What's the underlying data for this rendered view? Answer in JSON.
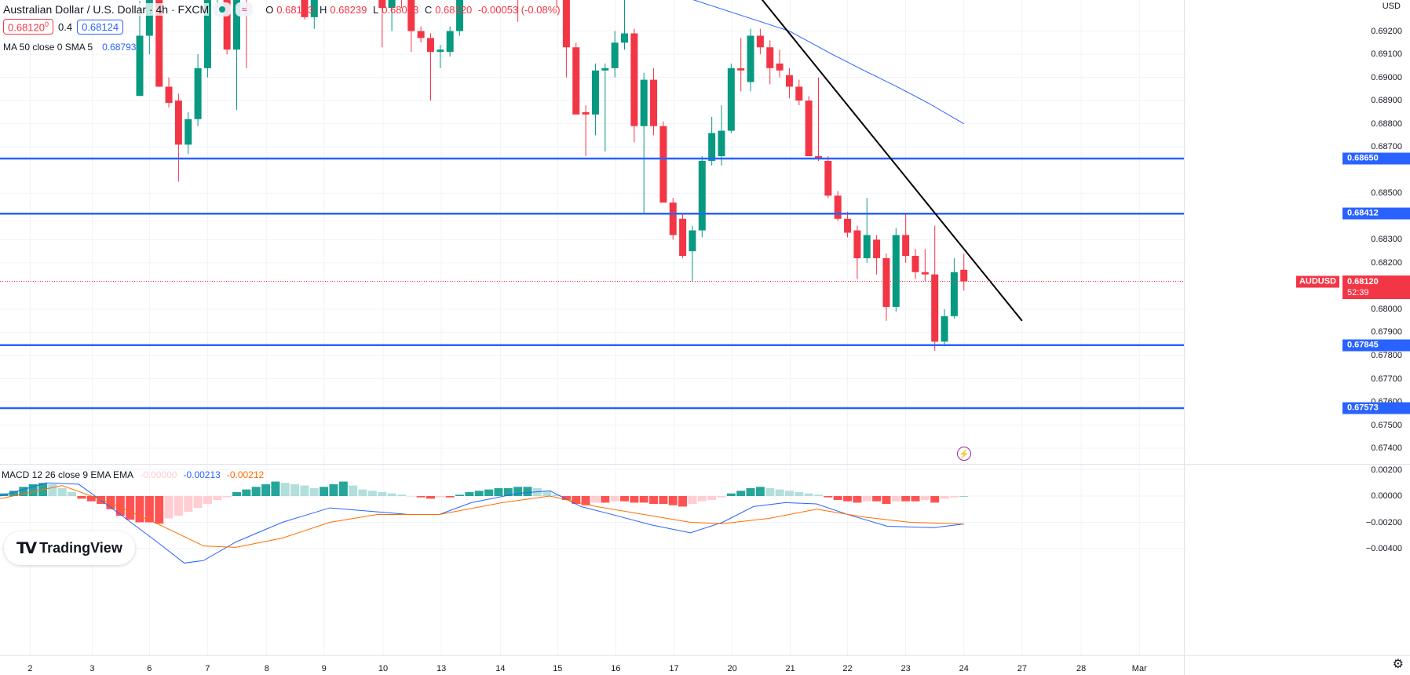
{
  "header": {
    "title": "Australian Dollar / U.S. Dollar · 4h · FXCM",
    "ohlc": {
      "o_label": "O",
      "o": "0.68173",
      "h_label": "H",
      "h": "0.68239",
      "l_label": "L",
      "l": "0.68083",
      "c_label": "C",
      "c": "0.68120",
      "change": "-0.00053 (-0.08%)"
    },
    "sell_price": "0.68120",
    "sell_sup": "0",
    "spread": "0.4",
    "buy_price": "0.68124",
    "buy_sup": "",
    "market_status_icon": "green-dot-icon",
    "wave_icon": "≈"
  },
  "indicator_ma": {
    "label": "MA 50 close 0 SMA 5",
    "value": "0.68793"
  },
  "indicator_macd": {
    "label": "MACD 12 26 close 9 EMA EMA",
    "hist": "-0.00000",
    "macd": "-0.00213",
    "signal": "-0.00212"
  },
  "currency": "USD",
  "symbol": "AUDUSD",
  "last_price": "0.68120",
  "countdown": "52:39",
  "logo_text": "TradingView",
  "colors": {
    "up": "#089981",
    "down": "#f23645",
    "level": "#2962ff",
    "ma": "#2962ff",
    "macd": "#2962ff",
    "signal": "#ff6d00",
    "trend": "#000000"
  },
  "time_axis": [
    {
      "label": "2",
      "index": -11.3
    },
    {
      "label": "3",
      "index": -4.9
    },
    {
      "label": "6",
      "index": 1
    },
    {
      "label": "7",
      "index": 7
    },
    {
      "label": "8",
      "index": 13.1
    },
    {
      "label": "9",
      "index": 19
    },
    {
      "label": "10",
      "index": 25.1
    },
    {
      "label": "13",
      "index": 31.1
    },
    {
      "label": "14",
      "index": 37.2
    },
    {
      "label": "15",
      "index": 43.1
    },
    {
      "label": "16",
      "index": 49.1
    },
    {
      "label": "17",
      "index": 55.1
    },
    {
      "label": "20",
      "index": 61.1
    },
    {
      "label": "21",
      "index": 67.1
    },
    {
      "label": "22",
      "index": 73
    },
    {
      "label": "23",
      "index": 79
    },
    {
      "label": "24",
      "index": 85
    },
    {
      "label": "27",
      "index": 91
    },
    {
      "label": "28",
      "index": 97.1
    },
    {
      "label": "Mar",
      "index": 103.1
    }
  ],
  "price_axis": [
    "0.69200",
    "0.69100",
    "0.69000",
    "0.68900",
    "0.68800",
    "0.68700",
    "0.68500",
    "0.68300",
    "0.68200",
    "0.68000",
    "0.67900",
    "0.67800",
    "0.67700",
    "0.67600",
    "0.67500",
    "0.67400"
  ],
  "macd_axis": [
    "0.00200",
    "0.00000",
    "−0.00200",
    "−0.00400"
  ],
  "levels": [
    "0.68650",
    "0.68412",
    "0.67845",
    "0.67573"
  ],
  "trendline": [
    [
      64.1,
      0.6934
    ],
    [
      91,
      0.6795
    ]
  ],
  "chart_data": {
    "type": "candlestick",
    "candles_ohlc": [
      [
        0.6892,
        0.6933,
        0.6892,
        0.6918
      ],
      [
        0.6918,
        0.6938,
        0.691,
        0.6936
      ],
      [
        0.6936,
        0.694,
        0.6896,
        0.6896
      ],
      [
        0.6896,
        0.69,
        0.6887,
        0.6889
      ],
      [
        0.689,
        0.6893,
        0.6855,
        0.6871
      ],
      [
        0.6871,
        0.6885,
        0.6867,
        0.6882
      ],
      [
        0.6882,
        0.691,
        0.6879,
        0.6904
      ],
      [
        0.6904,
        0.6945,
        0.69,
        0.694
      ],
      [
        0.694,
        0.695,
        0.693,
        0.6945
      ],
      [
        0.6945,
        0.6948,
        0.691,
        0.6912
      ],
      [
        0.6912,
        0.6945,
        0.6886,
        0.694
      ],
      [
        0.694,
        0.6946,
        0.6904,
        0.6938
      ],
      [
        0.6938,
        0.695,
        0.6935,
        0.6945
      ],
      [
        0.6945,
        0.6955,
        0.694,
        0.695
      ],
      [
        0.695,
        0.6956,
        0.6942,
        0.6944
      ],
      [
        0.6944,
        0.695,
        0.6938,
        0.6948
      ],
      [
        0.6948,
        0.6952,
        0.6936,
        0.694
      ],
      [
        0.694,
        0.6942,
        0.6925,
        0.6926
      ],
      [
        0.6926,
        0.6945,
        0.6921,
        0.6942
      ],
      [
        0.6942,
        0.6955,
        0.6938,
        0.695
      ],
      [
        0.695,
        0.6958,
        0.6944,
        0.6946
      ],
      [
        0.6946,
        0.6952,
        0.694,
        0.6948
      ],
      [
        0.6948,
        0.695,
        0.6938,
        0.6942
      ],
      [
        0.6942,
        0.6948,
        0.6937,
        0.6945
      ],
      [
        0.6945,
        0.6947,
        0.6936,
        0.694
      ],
      [
        0.694,
        0.6942,
        0.6913,
        0.693
      ],
      [
        0.693,
        0.6945,
        0.692,
        0.6942
      ],
      [
        0.6942,
        0.6948,
        0.693,
        0.6938
      ],
      [
        0.6938,
        0.694,
        0.6911,
        0.692
      ],
      [
        0.692,
        0.6922,
        0.6915,
        0.6917
      ],
      [
        0.6917,
        0.6919,
        0.689,
        0.6911
      ],
      [
        0.6911,
        0.6914,
        0.6904,
        0.6912
      ],
      [
        0.6911,
        0.6922,
        0.6909,
        0.692
      ],
      [
        0.692,
        0.694,
        0.6918,
        0.6938
      ],
      [
        0.6938,
        0.695,
        0.6935,
        0.6946
      ],
      [
        0.6946,
        0.6952,
        0.694,
        0.6944
      ],
      [
        0.6944,
        0.695,
        0.6938,
        0.6948
      ],
      [
        0.6948,
        0.6955,
        0.6945,
        0.695
      ],
      [
        0.695,
        0.6954,
        0.694,
        0.6942
      ],
      [
        0.6942,
        0.6948,
        0.6924,
        0.694
      ],
      [
        0.694,
        0.695,
        0.6936,
        0.6946
      ],
      [
        0.6946,
        0.6952,
        0.6942,
        0.6948
      ],
      [
        0.6948,
        0.695,
        0.6935,
        0.694
      ],
      [
        0.694,
        0.6942,
        0.693,
        0.6936
      ],
      [
        0.6936,
        0.694,
        0.69,
        0.6913
      ],
      [
        0.6913,
        0.6915,
        0.6884,
        0.6884
      ],
      [
        0.6885,
        0.6888,
        0.6866,
        0.6884
      ],
      [
        0.6884,
        0.6906,
        0.6875,
        0.6903
      ],
      [
        0.6903,
        0.6906,
        0.6868,
        0.6904
      ],
      [
        0.6904,
        0.692,
        0.69,
        0.6915
      ],
      [
        0.6915,
        0.6935,
        0.6912,
        0.6919
      ],
      [
        0.6919,
        0.6921,
        0.6872,
        0.6879
      ],
      [
        0.6879,
        0.6902,
        0.6841,
        0.6899
      ],
      [
        0.6899,
        0.6904,
        0.6875,
        0.6879
      ],
      [
        0.6879,
        0.6881,
        0.6846,
        0.6846
      ],
      [
        0.6846,
        0.6848,
        0.683,
        0.6832
      ],
      [
        0.6839,
        0.6841,
        0.6822,
        0.6823
      ],
      [
        0.6825,
        0.6836,
        0.6812,
        0.6834
      ],
      [
        0.6834,
        0.6866,
        0.6831,
        0.6864
      ],
      [
        0.6864,
        0.6883,
        0.6862,
        0.6876
      ],
      [
        0.6866,
        0.6888,
        0.6862,
        0.6877
      ],
      [
        0.6877,
        0.6906,
        0.6876,
        0.6904
      ],
      [
        0.6904,
        0.6917,
        0.6894,
        0.6903
      ],
      [
        0.6898,
        0.6921,
        0.6894,
        0.6918
      ],
      [
        0.6918,
        0.6921,
        0.691,
        0.6913
      ],
      [
        0.6913,
        0.6916,
        0.6897,
        0.6904
      ],
      [
        0.6906,
        0.6912,
        0.69,
        0.6903
      ],
      [
        0.6901,
        0.6904,
        0.6891,
        0.6896
      ],
      [
        0.6896,
        0.6899,
        0.6888,
        0.689
      ],
      [
        0.689,
        0.6892,
        0.6866,
        0.6866
      ],
      [
        0.6866,
        0.69,
        0.6864,
        0.6865
      ],
      [
        0.6864,
        0.6866,
        0.6848,
        0.6849
      ],
      [
        0.6849,
        0.6851,
        0.6838,
        0.6839
      ],
      [
        0.6839,
        0.6842,
        0.6831,
        0.6833
      ],
      [
        0.6834,
        0.6836,
        0.6813,
        0.6822
      ],
      [
        0.6822,
        0.6848,
        0.682,
        0.6832
      ],
      [
        0.683,
        0.6832,
        0.6815,
        0.6822
      ],
      [
        0.6822,
        0.6824,
        0.6795,
        0.6801
      ],
      [
        0.6801,
        0.6835,
        0.6799,
        0.6832
      ],
      [
        0.6832,
        0.6841,
        0.682,
        0.6823
      ],
      [
        0.6823,
        0.6826,
        0.6813,
        0.6816
      ],
      [
        0.6816,
        0.6826,
        0.6812,
        0.6815
      ],
      [
        0.6815,
        0.6836,
        0.6782,
        0.6786
      ],
      [
        0.6786,
        0.68,
        0.6784,
        0.6797
      ],
      [
        0.6797,
        0.6822,
        0.6796,
        0.6816
      ],
      [
        0.6817,
        0.6824,
        0.6808,
        0.6812
      ]
    ],
    "ma50": [
      [
        56,
        0.6935
      ],
      [
        67,
        0.692
      ],
      [
        71.4,
        0.691
      ],
      [
        74.7,
        0.6903
      ],
      [
        78.1,
        0.6896
      ],
      [
        81.3,
        0.6889
      ],
      [
        85,
        0.688
      ]
    ],
    "macd_hist_start_index": -14,
    "macd_hist": [
      0.0002,
      0.0004,
      0.0007,
      0.0009,
      0.001,
      0.0009,
      0.0006,
      0.0003,
      -0.0002,
      -0.0004,
      -0.0006,
      -0.001,
      -0.0015,
      -0.0018,
      -0.002,
      -0.002,
      -0.0021,
      -0.0017,
      -0.0015,
      -0.0012,
      -0.0009,
      -0.0006,
      -0.0003,
      -0.0001,
      0.0003,
      0.0005,
      0.0007,
      0.0009,
      0.0011,
      0.001,
      0.0009,
      0.0008,
      0.0006,
      0.0007,
      0.0009,
      0.0011,
      0.0008,
      0.0005,
      0.0004,
      0.0003,
      0.0002,
      0.0001,
      0.0,
      -0.0001,
      -0.0002,
      -0.0001,
      -0.0001,
      0.0001,
      0.0003,
      0.0004,
      0.0005,
      0.0006,
      0.0006,
      0.0007,
      0.0007,
      0.0006,
      0.0004,
      0.0001,
      -0.0003,
      -0.0006,
      -0.0007,
      -0.0005,
      -0.0005,
      -0.0004,
      -0.0004,
      -0.0005,
      -0.0005,
      -0.0006,
      -0.0006,
      -0.0007,
      -0.0008,
      -0.0006,
      -0.0004,
      -0.0003,
      -0.0001,
      0.0002,
      0.0004,
      0.0006,
      0.0007,
      0.0006,
      0.0005,
      0.0004,
      0.0003,
      0.0002,
      0.0001,
      -0.0001,
      -0.0003,
      -0.0004,
      -0.0005,
      -0.0004,
      -0.0004,
      -0.0006,
      -0.0004,
      -0.0004,
      -0.0004,
      -0.0003,
      -0.0005,
      -0.0002,
      -0.0001,
      0.0
    ],
    "macd_line": [
      [
        -14.4,
        0
      ],
      [
        -9.6,
        0.001
      ],
      [
        -6.3,
        0.0009
      ],
      [
        -3.1,
        -0.0008
      ],
      [
        1.8,
        -0.0035
      ],
      [
        4.6,
        -0.0051
      ],
      [
        6.6,
        -0.0049
      ],
      [
        9.9,
        -0.0035
      ],
      [
        14.7,
        -0.002
      ],
      [
        19.6,
        -0.0009
      ],
      [
        24.5,
        -0.0012
      ],
      [
        27.7,
        -0.0014
      ],
      [
        30.9,
        -0.0014
      ],
      [
        34.2,
        -0.0005
      ],
      [
        39,
        0.0002
      ],
      [
        42.3,
        0.0004
      ],
      [
        45.5,
        -0.0008
      ],
      [
        48.7,
        -0.0014
      ],
      [
        52.8,
        -0.0022
      ],
      [
        56.8,
        -0.0028
      ],
      [
        60.1,
        -0.002
      ],
      [
        63.3,
        -0.0008
      ],
      [
        66.6,
        -0.0005
      ],
      [
        69.8,
        -0.0006
      ],
      [
        73,
        -0.0014
      ],
      [
        77.1,
        -0.0023
      ],
      [
        81.9,
        -0.0024
      ],
      [
        85,
        -0.00213
      ]
    ],
    "signal_line": [
      [
        -14.4,
        -0.0002
      ],
      [
        -8,
        0.0008
      ],
      [
        -3.1,
        -0.0005
      ],
      [
        1.8,
        -0.0021
      ],
      [
        6.6,
        -0.0038
      ],
      [
        9.9,
        -0.0039
      ],
      [
        14.7,
        -0.0032
      ],
      [
        19.6,
        -0.002
      ],
      [
        24.5,
        -0.0014
      ],
      [
        30.9,
        -0.0014
      ],
      [
        37.4,
        -0.0005
      ],
      [
        42.3,
        0
      ],
      [
        47.1,
        -0.0008
      ],
      [
        52,
        -0.0014
      ],
      [
        56.8,
        -0.002
      ],
      [
        60.1,
        -0.0021
      ],
      [
        64.9,
        -0.0017
      ],
      [
        69.8,
        -0.001
      ],
      [
        74.7,
        -0.0016
      ],
      [
        79.5,
        -0.002
      ],
      [
        85,
        -0.00212
      ]
    ]
  }
}
